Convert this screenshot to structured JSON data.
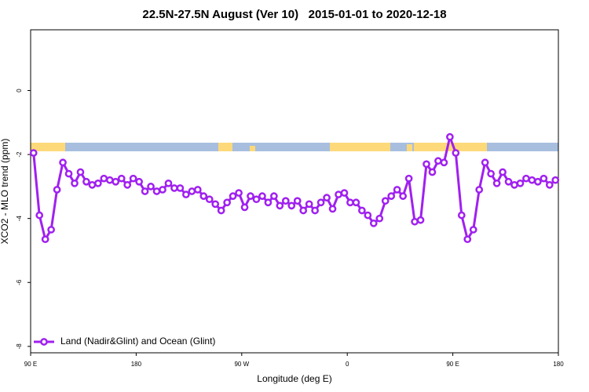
{
  "chart_data": {
    "type": "line",
    "title": "22.5N-27.5N August (Ver 10)   2015-01-01 to 2020-12-18",
    "x_label": "Longitude (deg E)",
    "y_label": "XCO2 - MLO trend (ppm)",
    "xlim": [
      90,
      540
    ],
    "ylim": [
      -8.2,
      1.9
    ],
    "xticks": [
      {
        "value": 90,
        "label": "90 E"
      },
      180,
      {
        "value": 270,
        "label": "90 W"
      },
      {
        "value": 360,
        "label": "0"
      },
      {
        "value": 450,
        "label": "90 E"
      },
      {
        "value": 540,
        "label": "180"
      }
    ],
    "yticks": [
      0,
      -2,
      -4,
      -6,
      -8
    ],
    "legend": "bottom-left",
    "x": [
      92.5,
      97.5,
      102.5,
      107.5,
      112.5,
      117.5,
      122.5,
      127.5,
      132.5,
      137.5,
      142.5,
      147.5,
      152.5,
      157.5,
      162.5,
      167.5,
      172.5,
      177.5,
      182.5,
      187.5,
      192.5,
      197.5,
      202.5,
      207.5,
      212.5,
      217.5,
      222.5,
      227.5,
      232.5,
      237.5,
      242.5,
      247.5,
      252.5,
      257.5,
      262.5,
      267.5,
      272.5,
      277.5,
      282.5,
      287.5,
      292.5,
      297.5,
      302.5,
      307.5,
      312.5,
      317.5,
      322.5,
      327.5,
      332.5,
      337.5,
      342.5,
      347.5,
      352.5,
      357.5,
      362.5,
      367.5,
      372.5,
      377.5,
      382.5,
      387.5,
      392.5,
      397.5,
      402.5,
      407.5,
      412.5,
      417.5,
      422.5,
      427.5,
      432.5,
      437.5,
      442.5,
      447.5,
      452.5,
      457.5,
      462.5,
      467.5,
      472.5,
      477.5,
      482.5,
      487.5,
      492.5,
      497.5,
      502.5,
      507.5,
      512.5,
      517.5,
      522.5,
      527.5,
      532.5,
      537.5
    ],
    "series": [
      {
        "name": "Land (Nadir&Glint) and Ocean (Glint)",
        "color": "#a020f0",
        "values": [
          -1.95,
          -3.9,
          -4.65,
          -4.35,
          -3.1,
          -2.25,
          -2.6,
          -2.9,
          -2.55,
          -2.85,
          -2.95,
          -2.9,
          -2.75,
          -2.8,
          -2.85,
          -2.75,
          -2.95,
          -2.75,
          -2.85,
          -3.15,
          -3.0,
          -3.15,
          -3.1,
          -2.9,
          -3.05,
          -3.05,
          -3.25,
          -3.15,
          -3.1,
          -3.3,
          -3.4,
          -3.55,
          -3.75,
          -3.5,
          -3.3,
          -3.2,
          -3.65,
          -3.3,
          -3.4,
          -3.3,
          -3.5,
          -3.3,
          -3.6,
          -3.45,
          -3.6,
          -3.45,
          -3.75,
          -3.55,
          -3.75,
          -3.5,
          -3.35,
          -3.7,
          -3.25,
          -3.2,
          -3.5,
          -3.5,
          -3.75,
          -3.9,
          -4.15,
          -4.0,
          -3.45,
          -3.3,
          -3.1,
          -3.3,
          -2.75,
          -4.1,
          -4.05,
          -2.3,
          -2.55,
          -2.2,
          -2.25,
          -1.45,
          -1.95,
          -3.9,
          -4.65,
          -4.35,
          -3.1,
          -2.25,
          -2.6,
          -2.9,
          -2.55,
          -2.85,
          -2.95,
          -2.9,
          -2.75,
          -2.8,
          -2.85,
          -2.75,
          -2.95,
          -2.8
        ]
      }
    ]
  }
}
